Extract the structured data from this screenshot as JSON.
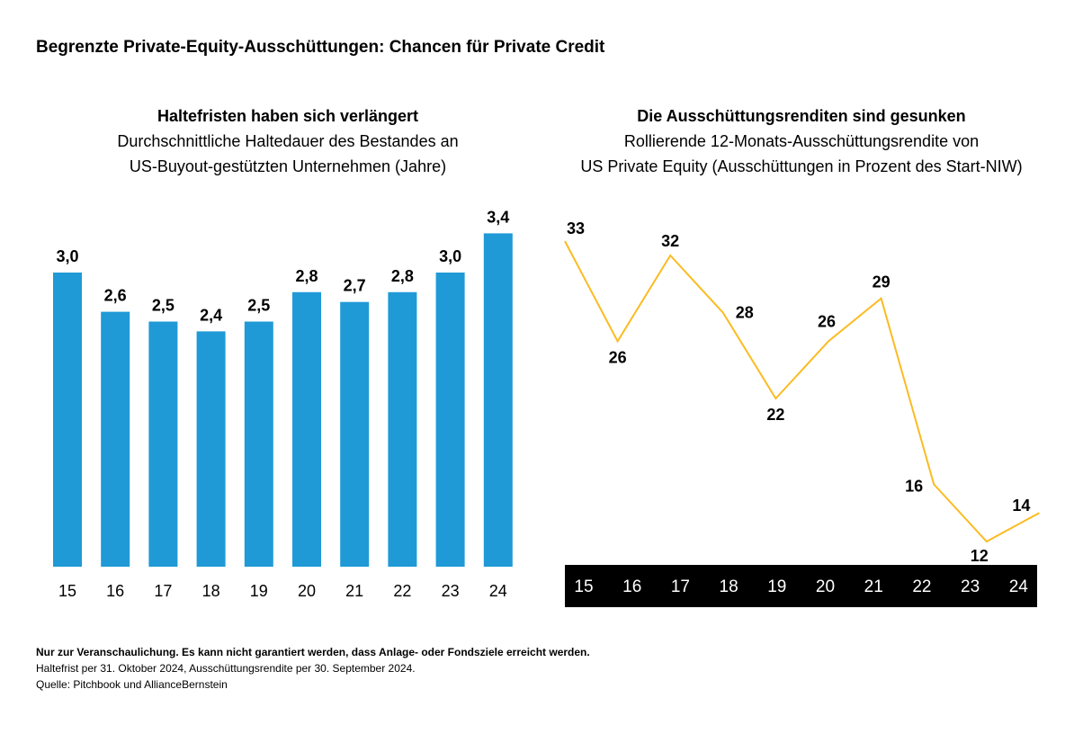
{
  "title": "Begrenzte Private-Equity-Ausschüttungen: Chancen für Private Credit",
  "chart_data": [
    {
      "type": "bar",
      "title": "Haltefristen haben sich verlängert",
      "subtitle_lines": [
        "Durchschnittliche Haltedauer des Bestandes an",
        "US-Buyout-gestützten Unternehmen (Jahre)"
      ],
      "categories": [
        "15",
        "16",
        "17",
        "18",
        "19",
        "20",
        "21",
        "22",
        "23",
        "24"
      ],
      "values": [
        3.0,
        2.6,
        2.5,
        2.4,
        2.5,
        2.8,
        2.7,
        2.8,
        3.0,
        3.4
      ],
      "data_labels": [
        "3,0",
        "2,6",
        "2,5",
        "2,4",
        "2,5",
        "2,8",
        "2,7",
        "2,8",
        "3,0",
        "3,4"
      ],
      "color": "#1f9ad6",
      "grid": false
    },
    {
      "type": "line",
      "title": "Die Ausschüttungsrenditen sind gesunken",
      "subtitle_lines": [
        "Rollierende 12-Monats-Ausschüttungsrendite von",
        "US Private Equity (Ausschüttungen in Prozent des Start-NIW)"
      ],
      "categories": [
        "15",
        "16",
        "17",
        "18",
        "19",
        "20",
        "21",
        "22",
        "23",
        "24"
      ],
      "values": [
        33,
        26,
        32,
        28,
        22,
        26,
        29,
        16,
        12,
        14
      ],
      "data_labels": [
        "33",
        "26",
        "32",
        "28",
        "22",
        "26",
        "29",
        "16",
        "12",
        "14"
      ],
      "color": "#fbbb21",
      "axis_band_color": "#000000",
      "grid": false
    }
  ],
  "footer": {
    "disclaimer": "Nur zur Veranschaulichung. Es kann nicht garantiert werden, dass Anlage- oder Fondsziele erreicht werden.",
    "note": "Haltefrist per 31. Oktober 2024, Ausschüttungsrendite per 30. September 2024.",
    "source": "Quelle: Pitchbook und AllianceBernstein"
  }
}
